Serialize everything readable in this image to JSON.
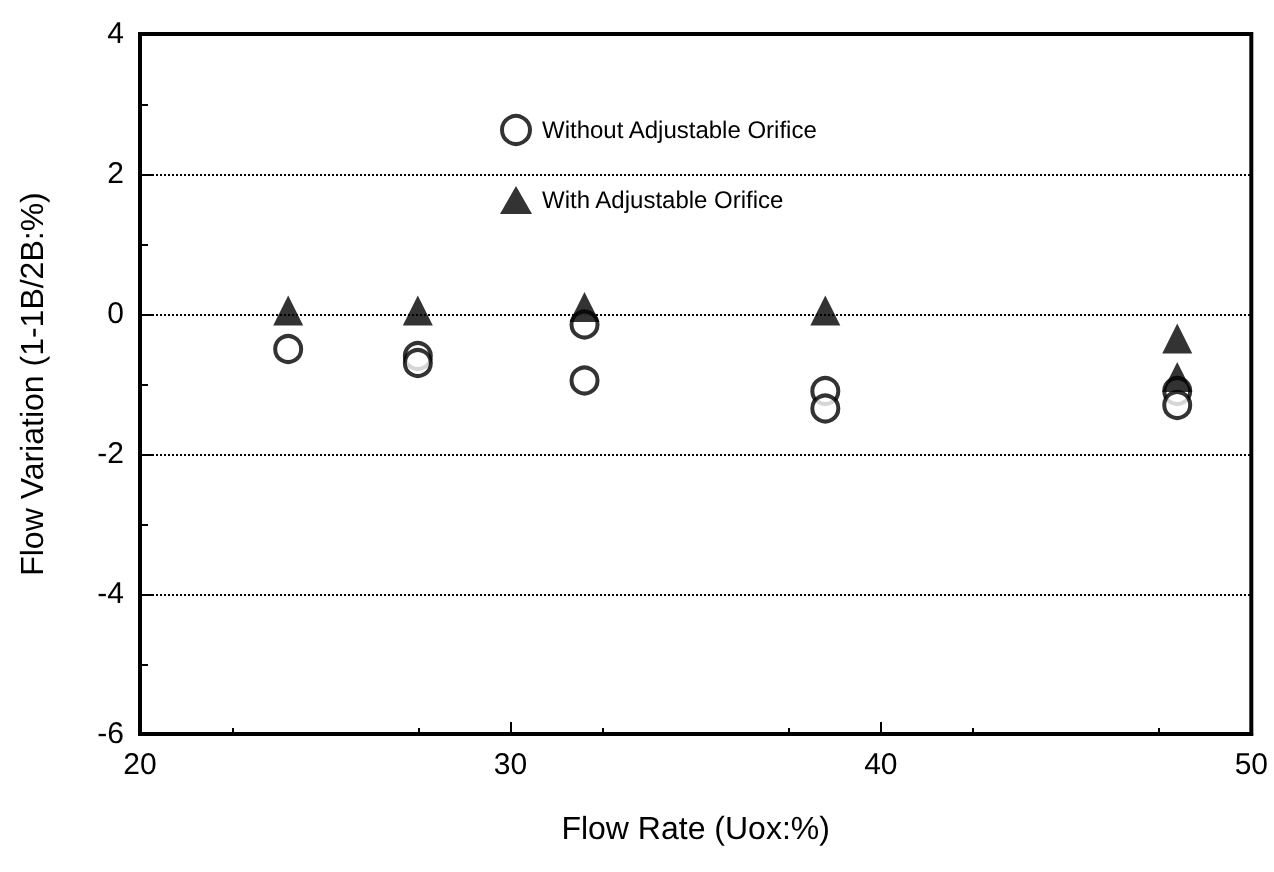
{
  "chart_data": {
    "type": "scatter",
    "xlabel": "Flow Rate (Uox:%)",
    "ylabel": "Flow Variation (1-1B/2B:%)",
    "xlim": [
      20,
      50
    ],
    "xticks": [
      20,
      30,
      40,
      50
    ],
    "ylim": [
      -6,
      4
    ],
    "yticks": [
      -6,
      -4,
      -2,
      0,
      2,
      4
    ],
    "grid": "y",
    "legend": "top",
    "series": [
      {
        "name": "Without Adjustable Orifice",
        "color": "#000000",
        "marker": "circle",
        "x": [
          24,
          27.5,
          27.5,
          32,
          32,
          38.5,
          38.5,
          48,
          48
        ],
        "values": [
          -0.5,
          -0.6,
          -0.7,
          -0.15,
          -0.95,
          -1.1,
          -1.35,
          -1.1,
          -1.3
        ]
      },
      {
        "name": "With Adjustable Orifice",
        "color": "#000000",
        "marker": "triangle",
        "x": [
          24,
          27.5,
          32,
          38.5,
          48,
          48
        ],
        "values": [
          0.05,
          0.05,
          0.1,
          0.05,
          -0.35,
          -0.9
        ]
      }
    ]
  }
}
